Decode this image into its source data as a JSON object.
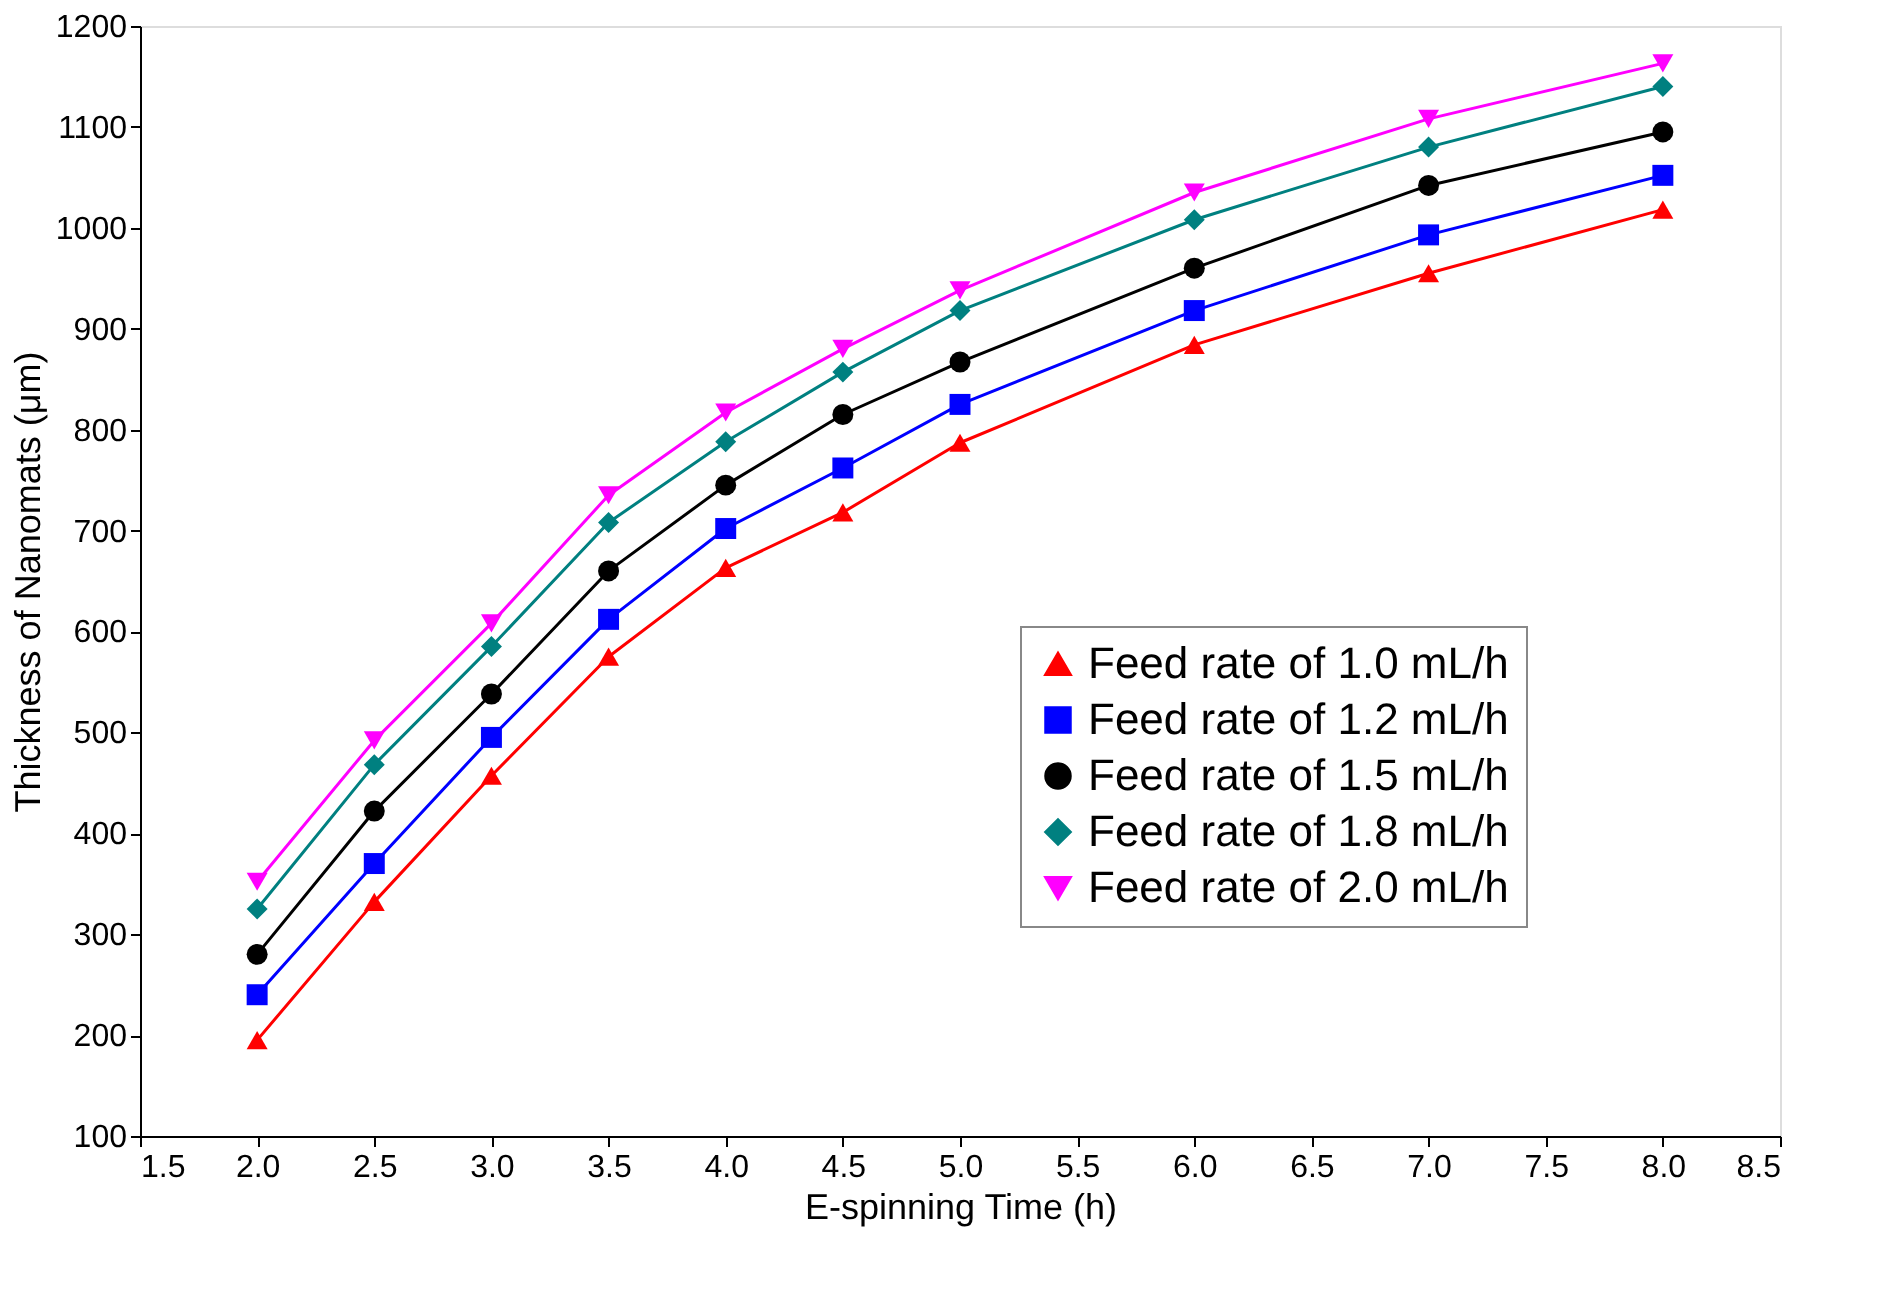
{
  "chart_data": {
    "type": "line",
    "xlabel": "E-spinning Time (h)",
    "ylabel": "Thickness of Nanomats (μm)",
    "x": [
      2.0,
      2.5,
      3.0,
      3.5,
      4.0,
      4.5,
      5.0,
      6.0,
      7.0,
      8.0
    ],
    "xlim": [
      1.5,
      8.5
    ],
    "xticks": [
      {
        "value": 1.5,
        "label": "1.5"
      },
      {
        "value": 2,
        "label": "2.0"
      },
      {
        "value": 2.5,
        "label": "2.5"
      },
      {
        "value": 3,
        "label": "3.0"
      },
      {
        "value": 3.5,
        "label": "3.5"
      },
      {
        "value": 4,
        "label": "4.0"
      },
      {
        "value": 4.5,
        "label": "4.5"
      },
      {
        "value": 5,
        "label": "5.0"
      },
      {
        "value": 5.5,
        "label": "5.5"
      },
      {
        "value": 6,
        "label": "6.0"
      },
      {
        "value": 6.5,
        "label": "6.5"
      },
      {
        "value": 7,
        "label": "7.0"
      },
      {
        "value": 7.5,
        "label": "7.5"
      },
      {
        "value": 8,
        "label": "8.0"
      },
      {
        "value": 8.5,
        "label": "8.5"
      }
    ],
    "ylim": [
      100,
      1200
    ],
    "yticks": [
      100,
      200,
      300,
      400,
      500,
      600,
      700,
      800,
      900,
      1000,
      1100,
      1200
    ],
    "grid": false,
    "legend": "right",
    "line_style": "solid",
    "series": [
      {
        "name": "Feed rate of 1.0 mL/h",
        "color": "#ff0000",
        "marker": "triangle",
        "values": [
          195,
          332,
          457,
          575,
          663,
          718,
          787,
          884,
          955,
          1018
        ]
      },
      {
        "name": "Feed rate of 1.2 mL/h",
        "color": "#0000ff",
        "marker": "square",
        "values": [
          240,
          370,
          495,
          612,
          702,
          762,
          825,
          918,
          993,
          1052
        ]
      },
      {
        "name": "Feed rate of 1.5 mL/h",
        "color": "#000000",
        "marker": "circle",
        "values": [
          280,
          422,
          538,
          660,
          745,
          815,
          867,
          960,
          1042,
          1095
        ]
      },
      {
        "name": "Feed rate of 1.8 mL/h",
        "color": "#008080",
        "marker": "diamond",
        "values": [
          325,
          468,
          585,
          708,
          788,
          857,
          918,
          1008,
          1080,
          1140
        ]
      },
      {
        "name": "Feed rate of 2.0 mL/h",
        "color": "#ff00ff",
        "marker": "triangle-down",
        "values": [
          352,
          492,
          608,
          735,
          817,
          880,
          938,
          1035,
          1108,
          1163
        ]
      }
    ]
  }
}
